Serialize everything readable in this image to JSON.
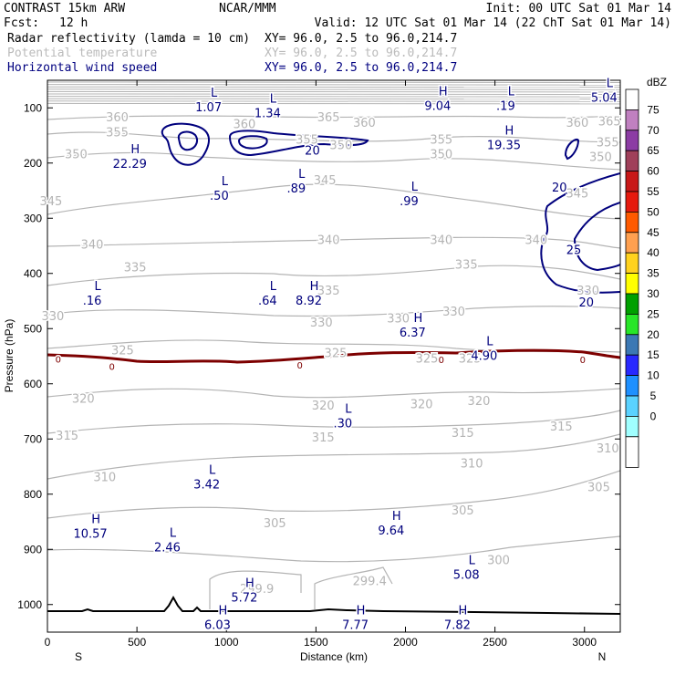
{
  "header": {
    "model": "CONTRAST 15km ARW",
    "org": "NCAR/MMM",
    "init": "Init: 00 UTC Sat 01 Mar 14",
    "fcst_label": "Fcst:",
    "fcst_value": "12 h",
    "valid": "Valid: 12 UTC Sat 01 Mar 14 (22 ChT Sat 01 Mar 14)",
    "fields": [
      {
        "name": "Radar reflectivity (lamda = 10 cm)",
        "xy": "XY=  96.0,  2.5 to  96.0,214.7",
        "color": "#000000"
      },
      {
        "name": "Potential temperature",
        "xy": "XY=  96.0,  2.5 to  96.0,214.7",
        "color": "#bbbbbb"
      },
      {
        "name": "Horizontal wind speed",
        "xy": "XY=  96.0,  2.5 to  96.0,214.7",
        "color": "#000080"
      }
    ]
  },
  "chart_data": {
    "type": "contour",
    "xlabel": "Distance (km)",
    "ylabel": "Pressure (hPa)",
    "xlim": [
      0,
      3200
    ],
    "ylim": [
      1050,
      50
    ],
    "xticks": [
      0,
      500,
      1000,
      1500,
      2000,
      2500,
      3000
    ],
    "yticks": [
      100,
      200,
      300,
      400,
      500,
      600,
      700,
      800,
      900,
      1000
    ],
    "x_end_labels": {
      "left": "S",
      "right": "N"
    },
    "theta_labels": [
      {
        "t": "360",
        "x": 390,
        "p": 118
      },
      {
        "t": "365",
        "x": 1570,
        "p": 118
      },
      {
        "t": "360",
        "x": 1770,
        "p": 128
      },
      {
        "t": "360",
        "x": 1100,
        "p": 130
      },
      {
        "t": "360",
        "x": 2960,
        "p": 128
      },
      {
        "t": "365",
        "x": 3140,
        "p": 125
      },
      {
        "t": "355",
        "x": 390,
        "p": 145
      },
      {
        "t": "355",
        "x": 1450,
        "p": 158
      },
      {
        "t": "355",
        "x": 2200,
        "p": 158
      },
      {
        "t": "355",
        "x": 3130,
        "p": 163
      },
      {
        "t": "350",
        "x": 1640,
        "p": 168
      },
      {
        "t": "350",
        "x": 160,
        "p": 185
      },
      {
        "t": "350",
        "x": 2200,
        "p": 185
      },
      {
        "t": "350",
        "x": 3090,
        "p": 190
      },
      {
        "t": "345",
        "x": 1550,
        "p": 232
      },
      {
        "t": "345",
        "x": 20,
        "p": 270
      },
      {
        "t": "345",
        "x": 2960,
        "p": 256
      },
      {
        "t": "340",
        "x": 250,
        "p": 348
      },
      {
        "t": "340",
        "x": 1570,
        "p": 340
      },
      {
        "t": "340",
        "x": 2200,
        "p": 340
      },
      {
        "t": "340",
        "x": 2730,
        "p": 340
      },
      {
        "t": "335",
        "x": 490,
        "p": 390
      },
      {
        "t": "335",
        "x": 1570,
        "p": 432
      },
      {
        "t": "335",
        "x": 2340,
        "p": 385
      },
      {
        "t": "330",
        "x": 30,
        "p": 478
      },
      {
        "t": "330",
        "x": 1530,
        "p": 490
      },
      {
        "t": "330",
        "x": 2270,
        "p": 470
      },
      {
        "t": "330",
        "x": 1960,
        "p": 482
      },
      {
        "t": "330",
        "x": 3020,
        "p": 432
      },
      {
        "t": "325",
        "x": 420,
        "p": 540
      },
      {
        "t": "325",
        "x": 1610,
        "p": 545
      },
      {
        "t": "325",
        "x": 2120,
        "p": 555
      },
      {
        "t": "325",
        "x": 2360,
        "p": 555
      },
      {
        "t": "320",
        "x": 200,
        "p": 628
      },
      {
        "t": "320",
        "x": 1540,
        "p": 640
      },
      {
        "t": "320",
        "x": 2090,
        "p": 638
      },
      {
        "t": "320",
        "x": 2410,
        "p": 632
      },
      {
        "t": "315",
        "x": 110,
        "p": 695
      },
      {
        "t": "315",
        "x": 1540,
        "p": 698
      },
      {
        "t": "315",
        "x": 2320,
        "p": 690
      },
      {
        "t": "315",
        "x": 2870,
        "p": 678
      },
      {
        "t": "310",
        "x": 320,
        "p": 770
      },
      {
        "t": "310",
        "x": 2370,
        "p": 745
      },
      {
        "t": "310",
        "x": 3130,
        "p": 718
      },
      {
        "t": "305",
        "x": 1270,
        "p": 853
      },
      {
        "t": "305",
        "x": 2320,
        "p": 830
      },
      {
        "t": "305",
        "x": 3080,
        "p": 788
      },
      {
        "t": "300",
        "x": 2520,
        "p": 920
      },
      {
        "t": "299.9",
        "x": 1170,
        "p": 972
      },
      {
        "t": "299.4",
        "x": 1800,
        "p": 958
      }
    ],
    "extrema": [
      {
        "k": "L",
        "v": "1.07",
        "x": 900,
        "p": 90
      },
      {
        "k": "L",
        "v": "1.34",
        "x": 1230,
        "p": 100
      },
      {
        "k": "H",
        "v": "9.04",
        "x": 2180,
        "p": 87
      },
      {
        "k": "L",
        "v": ".19",
        "x": 2560,
        "p": 87
      },
      {
        "k": "L",
        "v": "5.04",
        "x": 3110,
        "p": 72
      },
      {
        "k": "H",
        "v": "22.29",
        "x": 460,
        "p": 192
      },
      {
        "k": "H",
        "v": "19.35",
        "x": 2550,
        "p": 158
      },
      {
        "k": "L",
        "v": ".50",
        "x": 960,
        "p": 250
      },
      {
        "k": "L",
        "v": ".89",
        "x": 1390,
        "p": 237
      },
      {
        "k": "L",
        "v": ".99",
        "x": 2020,
        "p": 260
      },
      {
        "k": "L",
        "v": ".16",
        "x": 250,
        "p": 440
      },
      {
        "k": "L",
        "v": ".64",
        "x": 1230,
        "p": 440
      },
      {
        "k": "H",
        "v": "8.92",
        "x": 1460,
        "p": 440
      },
      {
        "k": "H",
        "v": "6.37",
        "x": 2040,
        "p": 498
      },
      {
        "k": "L",
        "v": "4.90",
        "x": 2440,
        "p": 540
      },
      {
        "k": "L",
        "v": ".30",
        "x": 1650,
        "p": 662
      },
      {
        "k": "L",
        "v": "3.42",
        "x": 890,
        "p": 773
      },
      {
        "k": "H",
        "v": "10.57",
        "x": 240,
        "p": 862
      },
      {
        "k": "L",
        "v": "2.46",
        "x": 670,
        "p": 887
      },
      {
        "k": "H",
        "v": "9.64",
        "x": 1920,
        "p": 857
      },
      {
        "k": "H",
        "v": "5.72",
        "x": 1100,
        "p": 978
      },
      {
        "k": "L",
        "v": "5.08",
        "x": 2340,
        "p": 937
      },
      {
        "k": "H",
        "v": "6.03",
        "x": 950,
        "p": 1028
      },
      {
        "k": "H",
        "v": "7.77",
        "x": 1720,
        "p": 1028
      },
      {
        "k": "H",
        "v": "7.82",
        "x": 2290,
        "p": 1028
      }
    ],
    "wind_contour_labels": [
      {
        "t": "20",
        "x": 1480,
        "p": 178
      },
      {
        "t": "20",
        "x": 2860,
        "p": 245
      },
      {
        "t": "25",
        "x": 2940,
        "p": 358
      },
      {
        "t": "20",
        "x": 3010,
        "p": 453
      }
    ],
    "zero_labels": [
      {
        "t": "0",
        "x": 60,
        "p": 555
      },
      {
        "t": "0",
        "x": 360,
        "p": 568
      },
      {
        "t": "0",
        "x": 1410,
        "p": 566
      },
      {
        "t": "0",
        "x": 2200,
        "p": 556
      },
      {
        "t": "0",
        "x": 2990,
        "p": 556
      }
    ],
    "colorbar": {
      "unit": "dBZ",
      "labels": [
        "75",
        "70",
        "65",
        "60",
        "55",
        "50",
        "45",
        "40",
        "35",
        "30",
        "25",
        "20",
        "15",
        "10",
        "5",
        "0"
      ],
      "colors": [
        "#c080c0",
        "#8c3ca4",
        "#a0405a",
        "#c81818",
        "#e61a0e",
        "#ff5a00",
        "#ffa050",
        "#ffd21e",
        "#ffff00",
        "#00a000",
        "#28e628",
        "#3c78b4",
        "#2828ff",
        "#1e90ff",
        "#5ad2ff",
        "#a0ffff"
      ],
      "bottom_color": "#ffffff"
    },
    "colors": {
      "theta": "#b4b4b4",
      "wind": "#00007d",
      "zero": "#7d0000",
      "terrain": "#000000"
    }
  }
}
